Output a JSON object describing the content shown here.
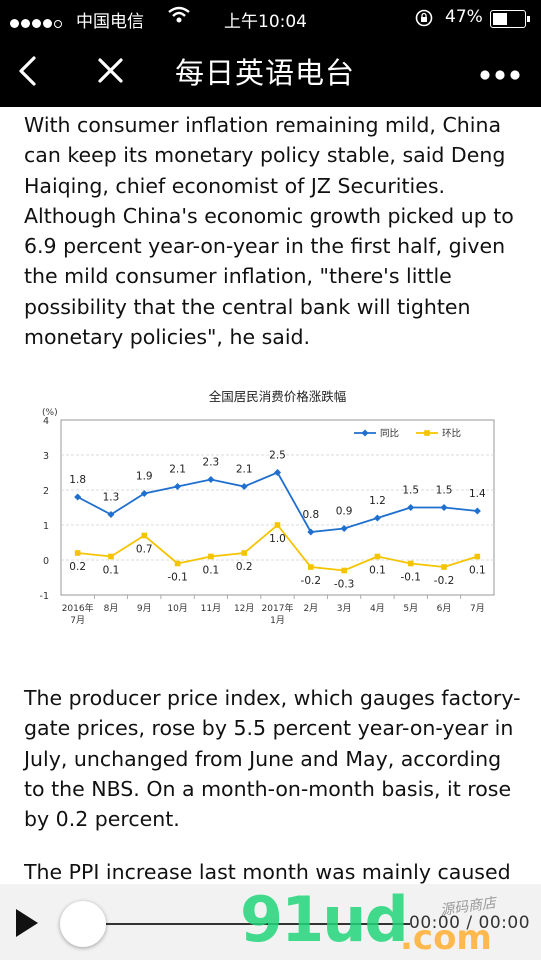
{
  "status_bar": {
    "carrier": "中国电信",
    "time": "上午10:04",
    "battery": "47%"
  },
  "nav": {
    "title": "每日英语电台"
  },
  "article": {
    "para1": "With consumer inflation remaining mild, China can keep its monetary policy stable, said Deng Haiqing, chief economist of JZ Securities. Although China's economic growth picked up to 6.9 percent year-on-year in the first half, given the mild consumer inflation, \"there's little possibility that the central bank will tighten monetary policies\", he said.",
    "para2": "The producer price index, which gauges factory-gate prices, rose by 5.5 percent year-on-year in July, unchanged from June and May, according to the NBS. On a month-on-month basis, it rose by 0.2 percent.",
    "para3": "The PPI increase last month was mainly caused"
  },
  "chart_data": {
    "type": "line",
    "title": "全国居民消费价格涨跌幅",
    "ylabel": "(%)",
    "ylim": [
      -1,
      4
    ],
    "yticks": [
      "4",
      "3",
      "2",
      "1",
      "0",
      "-1"
    ],
    "categories": [
      "2016年7月",
      "8月",
      "9月",
      "10月",
      "11月",
      "12月",
      "2017年1月",
      "2月",
      "3月",
      "4月",
      "5月",
      "6月",
      "7月"
    ],
    "x_tick_lines": [
      [
        "2016年",
        "7月"
      ],
      [
        "8月"
      ],
      [
        "9月"
      ],
      [
        "10月"
      ],
      [
        "11月"
      ],
      [
        "12月"
      ],
      [
        "2017年",
        "1月"
      ],
      [
        "2月"
      ],
      [
        "3月"
      ],
      [
        "4月"
      ],
      [
        "5月"
      ],
      [
        "6月"
      ],
      [
        "7月"
      ]
    ],
    "legend_position": "top-right",
    "grid": true,
    "series": [
      {
        "name": "同比",
        "color": "#1f6fcf",
        "values": [
          1.8,
          1.3,
          1.9,
          2.1,
          2.3,
          2.1,
          2.5,
          0.8,
          0.9,
          1.2,
          1.5,
          1.5,
          1.4
        ],
        "labels": [
          "1.8",
          "1.3",
          "1.9",
          "2.1",
          "2.3",
          "2.1",
          "2.5",
          "0.8",
          "0.9",
          "1.2",
          "1.5",
          "1.5",
          "1.4"
        ]
      },
      {
        "name": "环比",
        "color": "#f5c400",
        "values": [
          0.2,
          0.1,
          0.7,
          -0.1,
          0.1,
          0.2,
          1.0,
          -0.2,
          -0.3,
          0.1,
          -0.1,
          -0.2,
          0.1
        ],
        "labels": [
          "0.2",
          "0.1",
          "0.7",
          "-0.1",
          "0.1",
          "0.2",
          "1.0",
          "-0.2",
          "-0.3",
          "0.1",
          "-0.1",
          "-0.2",
          "0.1"
        ]
      }
    ]
  },
  "player": {
    "time": "00:00 / 00:00"
  },
  "watermark": {
    "brand": "91ud",
    "domain": ".com",
    "tagline": "源码商店"
  }
}
